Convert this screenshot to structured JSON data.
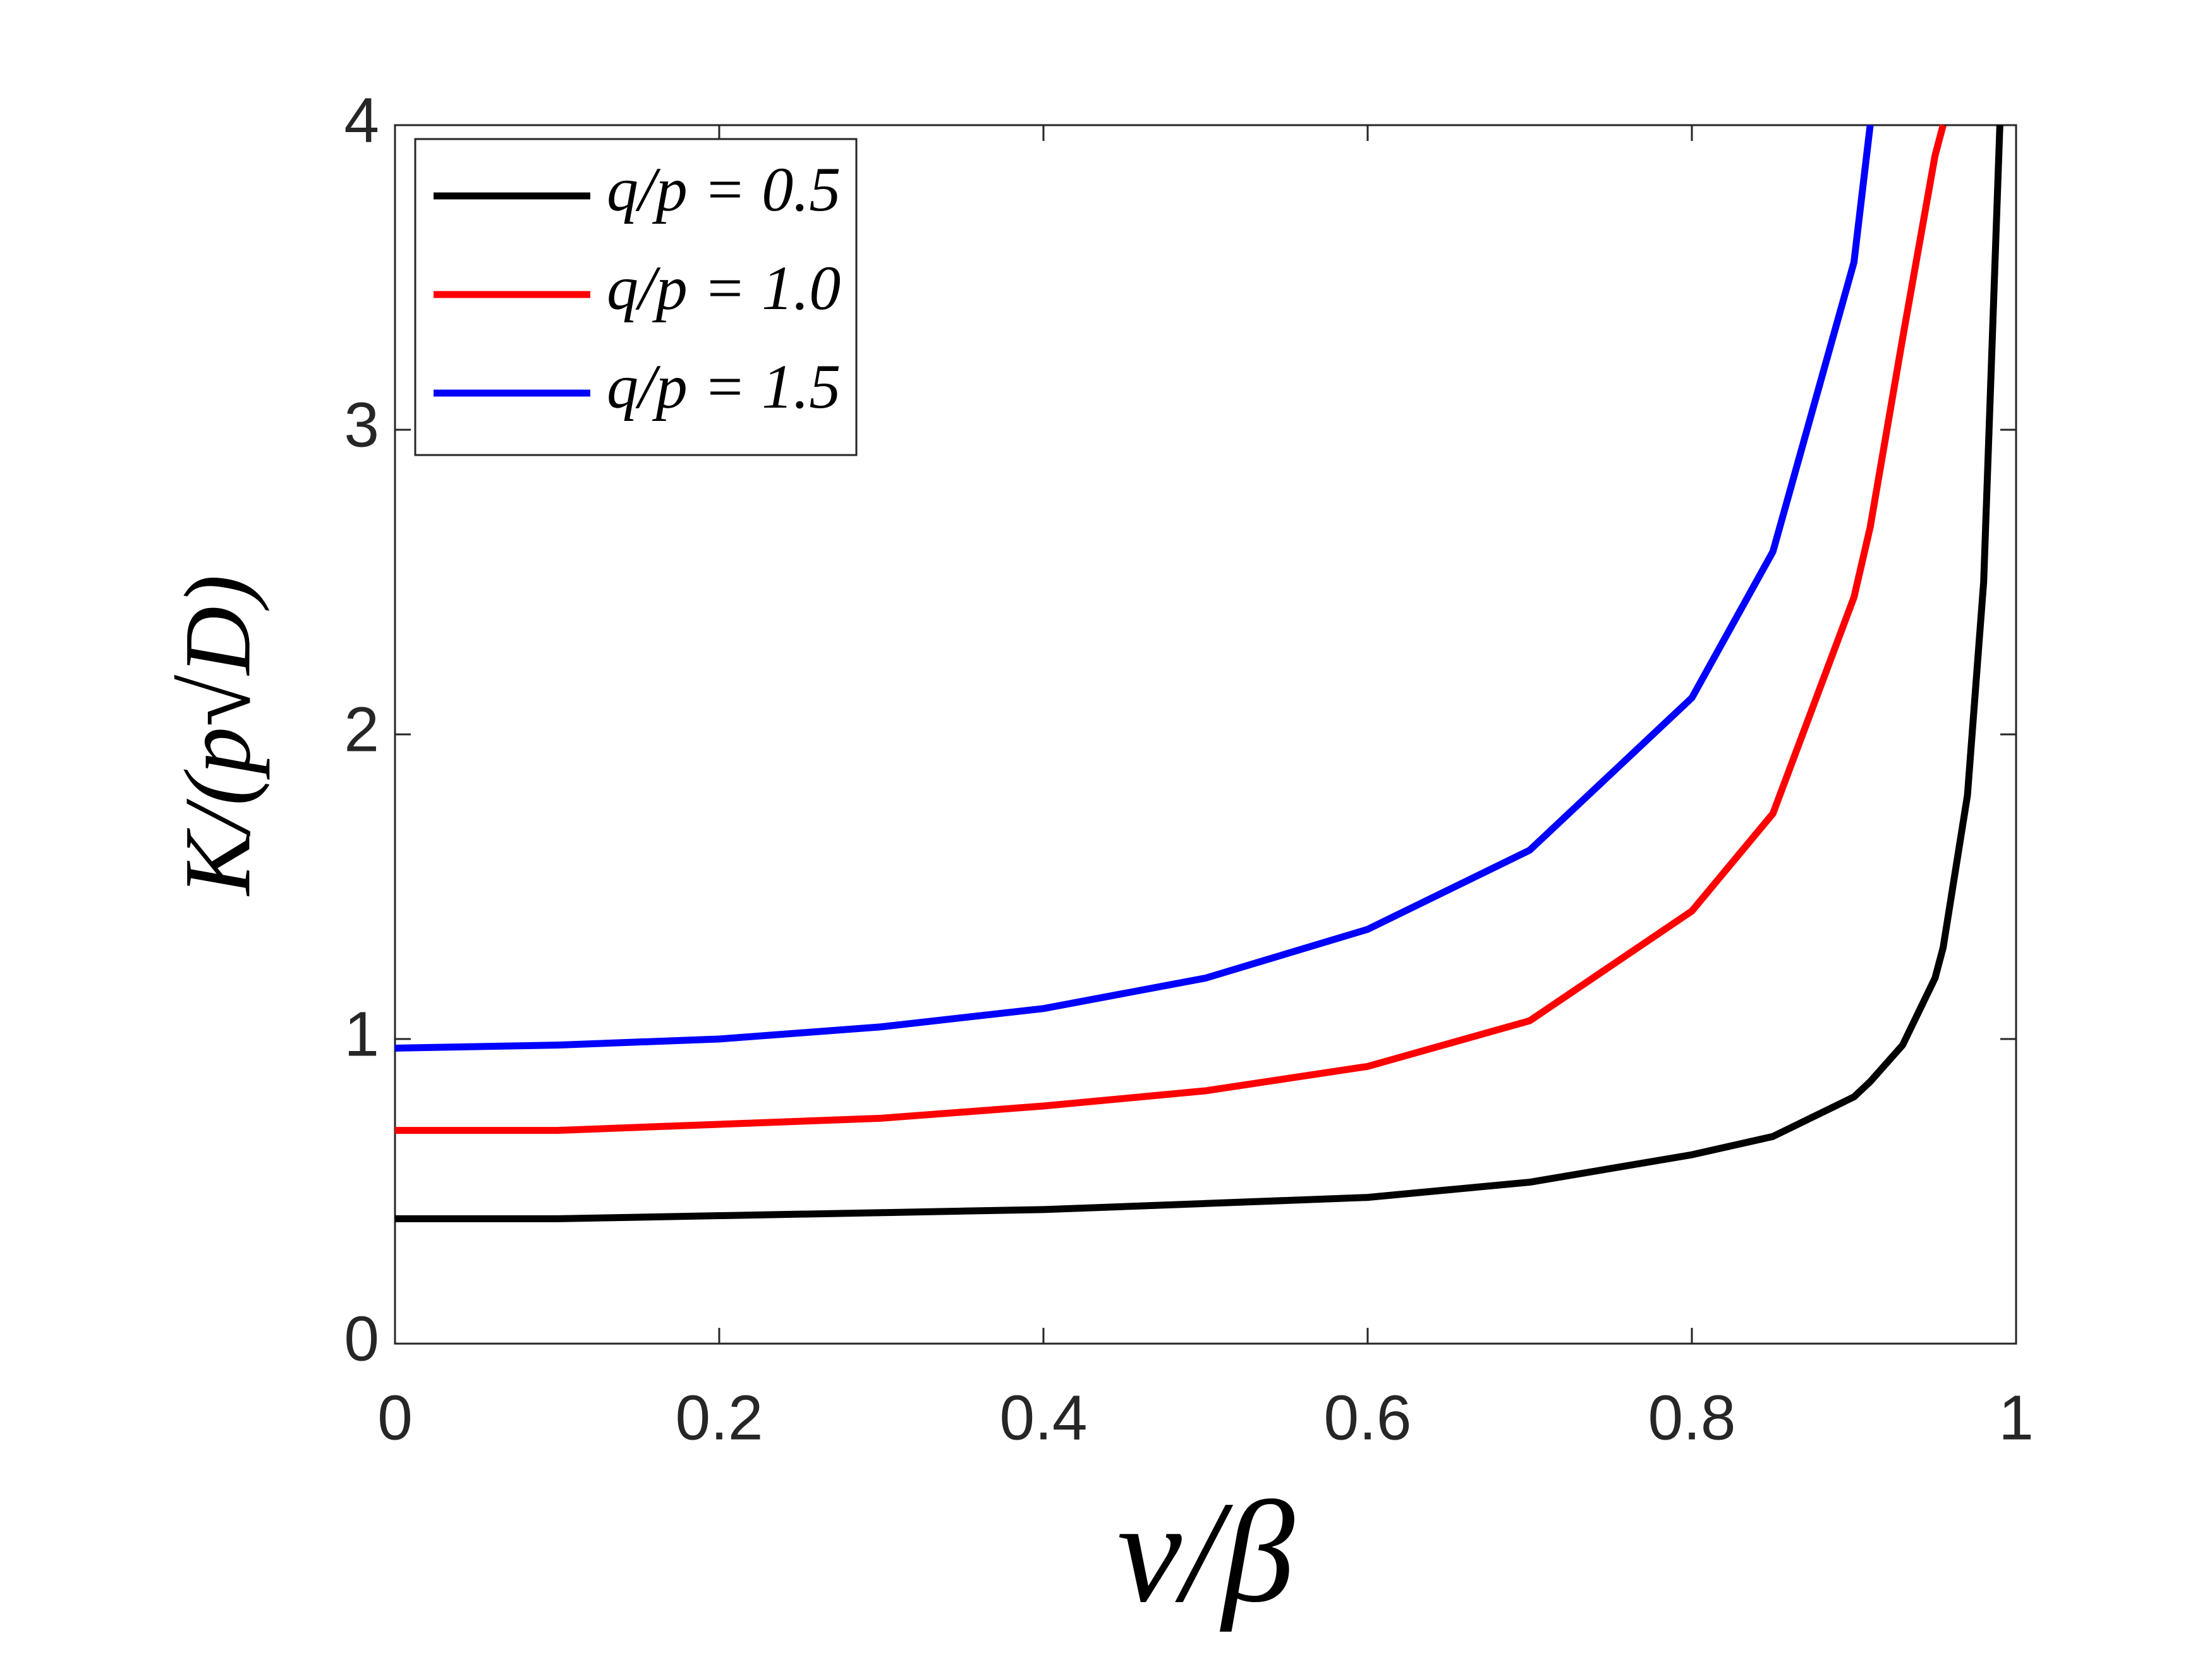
{
  "chart_data": {
    "type": "line",
    "x_label": "v/β",
    "y_label": "K/(p√D)",
    "x": [
      0,
      0.1,
      0.2,
      0.3,
      0.4,
      0.5,
      0.6,
      0.7,
      0.8,
      0.85,
      0.9,
      0.91,
      0.93,
      0.95,
      0.955,
      0.97,
      0.98,
      0.99
    ],
    "series": [
      {
        "name": "q/p = 0.5",
        "color": "#000000",
        "values": [
          0.41,
          0.41,
          0.42,
          0.43,
          0.44,
          0.46,
          0.48,
          0.53,
          0.62,
          0.68,
          0.81,
          0.86,
          0.98,
          1.2,
          1.3,
          1.8,
          2.5,
          4.0
        ]
      },
      {
        "name": "q/p = 1.0",
        "color": "#ff0000",
        "values": [
          0.7,
          0.7,
          0.72,
          0.74,
          0.78,
          0.83,
          0.91,
          1.06,
          1.42,
          1.74,
          2.45,
          2.68,
          3.3,
          3.9,
          4.0,
          null,
          null,
          null
        ]
      },
      {
        "name": "q/p = 1.5",
        "color": "#0000ff",
        "values": [
          0.97,
          0.98,
          1.0,
          1.04,
          1.1,
          1.2,
          1.36,
          1.62,
          2.12,
          2.6,
          3.55,
          4.0,
          null,
          null,
          null,
          null,
          null,
          null
        ]
      }
    ],
    "xlim": [
      0,
      1
    ],
    "ylim": [
      0,
      4
    ],
    "xticks": [
      0,
      0.2,
      0.4,
      0.6,
      0.8,
      1
    ],
    "yticks": [
      0,
      1,
      2,
      3,
      4
    ],
    "legend": "upper-left"
  }
}
